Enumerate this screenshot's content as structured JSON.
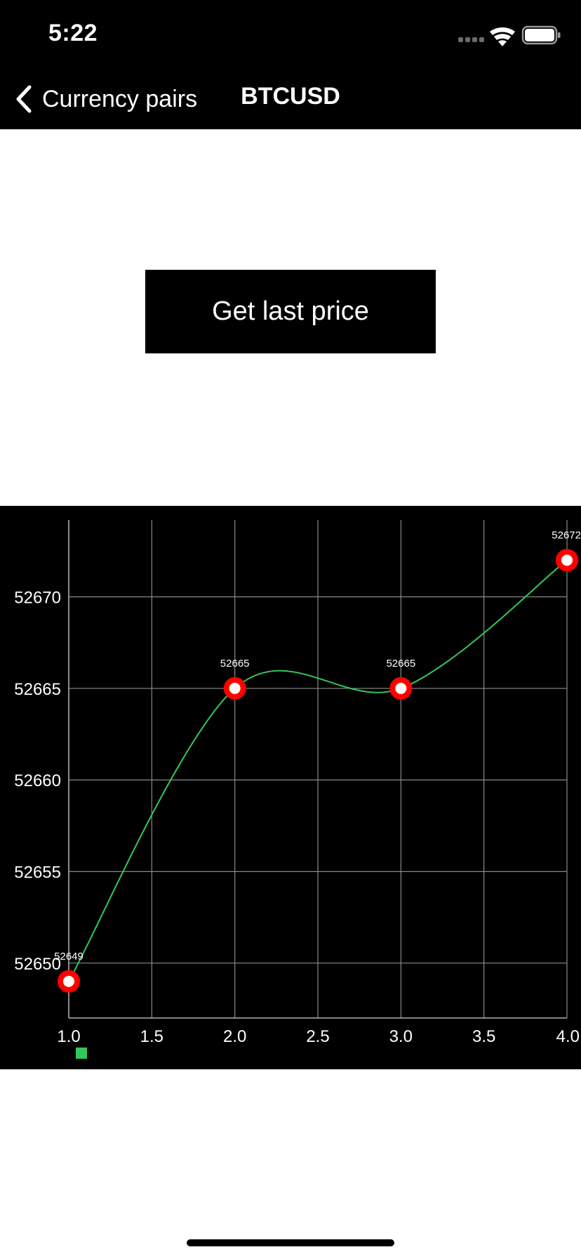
{
  "status_bar": {
    "time": "5:22",
    "signal_icon": "signal-dots-icon",
    "wifi_icon": "wifi-icon",
    "battery_icon": "battery-icon"
  },
  "nav": {
    "back_icon": "chevron-left-icon",
    "back_label": "Currency pairs",
    "title": "BTCUSD"
  },
  "actions": {
    "get_price_label": "Get last price"
  },
  "colors": {
    "background": "#ffffff",
    "bars": "#000000",
    "chart_background": "#000000",
    "grid": "#8a8a8a",
    "line": "#34c759",
    "marker": "#ff0000",
    "marker_center": "#ffffff",
    "text": "#ffffff"
  },
  "chart_data": {
    "type": "line",
    "x": [
      1.0,
      2.0,
      3.0,
      4.0
    ],
    "series": [
      {
        "values": [
          52649,
          52665,
          52665,
          52672
        ]
      }
    ],
    "data_labels": [
      "52649",
      "52665",
      "52665",
      "52672"
    ],
    "x_ticks": [
      "1.0",
      "1.5",
      "2.0",
      "2.5",
      "3.0",
      "3.5",
      "4.0"
    ],
    "y_ticks": [
      "52650",
      "52655",
      "52660",
      "52665",
      "52670"
    ],
    "xlim": [
      1.0,
      4.0
    ],
    "ylim": [
      52647,
      52674.2
    ],
    "grid": true,
    "curve": "smooth",
    "legend": "bottom-left"
  }
}
